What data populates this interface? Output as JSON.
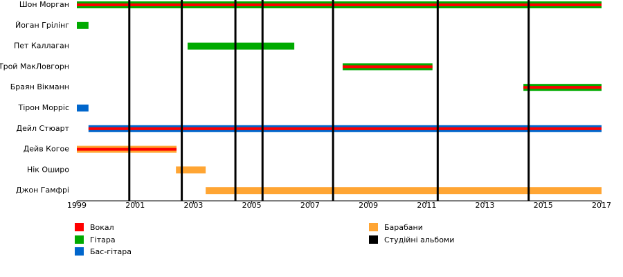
{
  "chart_data": {
    "type": "timeline",
    "xlim": [
      1999,
      2017
    ],
    "xticks": [
      1999,
      2001,
      2003,
      2005,
      2007,
      2009,
      2011,
      2013,
      2015,
      2017
    ],
    "roles": [
      {
        "name": "Вокал",
        "color": "#ff0000"
      },
      {
        "name": "Гітара",
        "color": "#00aa00"
      },
      {
        "name": "Бас-гітара",
        "color": "#0066cc"
      },
      {
        "name": "Барабани",
        "color": "#ffa533"
      }
    ],
    "albums_label": "Студійні альбоми",
    "albums_color": "#000000",
    "albums": [
      2000.8,
      2002.6,
      2004.44,
      2005.37,
      2007.79,
      2011.38,
      2014.5
    ],
    "members": [
      {
        "name": "Шон Морган",
        "bars": [
          {
            "start": 1999,
            "end": 2017,
            "roles": [
              "Гітара",
              "Вокал"
            ]
          }
        ]
      },
      {
        "name": "Йоган Грілінг",
        "bars": [
          {
            "start": 1999,
            "end": 1999.4,
            "roles": [
              "Гітара"
            ]
          }
        ]
      },
      {
        "name": "Пет Каллаган",
        "bars": [
          {
            "start": 2002.8,
            "end": 2006.46,
            "roles": [
              "Гітара"
            ]
          }
        ]
      },
      {
        "name": "Трой МакЛовгорн",
        "bars": [
          {
            "start": 2008.12,
            "end": 2011.2,
            "roles": [
              "Гітара",
              "Вокал"
            ]
          }
        ]
      },
      {
        "name": "Браян Вікманн",
        "bars": [
          {
            "start": 2014.32,
            "end": 2017,
            "roles": [
              "Гітара",
              "Вокал"
            ]
          }
        ]
      },
      {
        "name": "Тірон Морріс",
        "bars": [
          {
            "start": 1999,
            "end": 1999.4,
            "roles": [
              "Бас-гітара"
            ]
          }
        ]
      },
      {
        "name": "Дейл Стюарт",
        "bars": [
          {
            "start": 1999.4,
            "end": 2017,
            "roles": [
              "Бас-гітара",
              "Вокал"
            ]
          }
        ]
      },
      {
        "name": "Дейв Когое",
        "bars": [
          {
            "start": 1999,
            "end": 2002.42,
            "roles": [
              "Барабани",
              "Вокал"
            ]
          }
        ]
      },
      {
        "name": "Нік Оширо",
        "bars": [
          {
            "start": 2002.4,
            "end": 2003.42,
            "roles": [
              "Барабани"
            ]
          }
        ]
      },
      {
        "name": "Джон Гамфрі",
        "bars": [
          {
            "start": 2003.42,
            "end": 2017,
            "roles": [
              "Барабани"
            ]
          }
        ]
      }
    ]
  }
}
